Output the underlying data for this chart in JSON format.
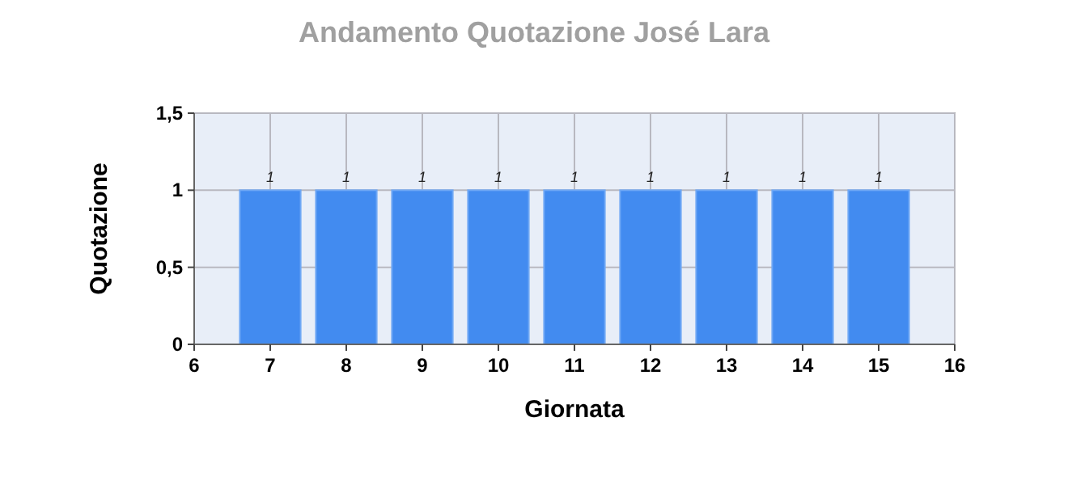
{
  "chart_data": {
    "type": "bar",
    "title": "Andamento Quotazione José Lara",
    "xlabel": "Giornata",
    "ylabel": "Quotazione",
    "x": [
      7,
      8,
      9,
      10,
      11,
      12,
      13,
      14,
      15
    ],
    "values": [
      1,
      1,
      1,
      1,
      1,
      1,
      1,
      1,
      1
    ],
    "color": "#428bf0",
    "xlim": [
      6,
      16
    ],
    "xticks": [
      6,
      7,
      8,
      9,
      10,
      11,
      12,
      13,
      14,
      15,
      16
    ],
    "ylim": [
      0,
      1.5
    ],
    "yticks": [
      0,
      {
        "value": 0.5,
        "label": "0,5"
      },
      1,
      {
        "value": 1.5,
        "label": "1,5"
      }
    ],
    "grid": true,
    "data_labels": true
  }
}
